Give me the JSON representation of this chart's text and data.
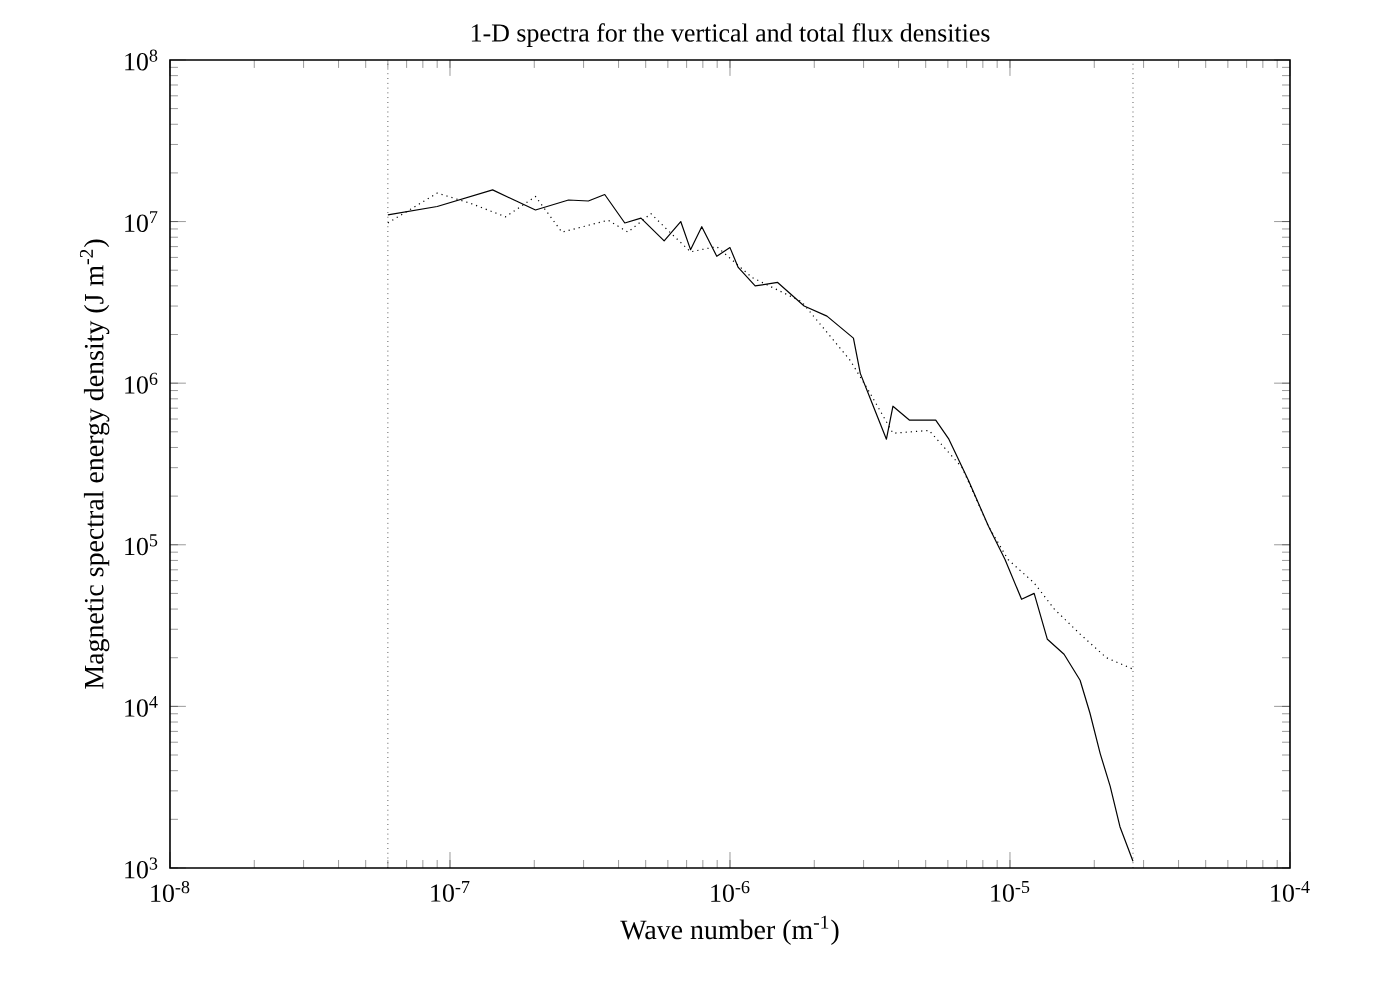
{
  "chart_data": {
    "type": "line",
    "title": "1-D spectra for the vertical and total flux densities",
    "xlabel": "Wave number (m$^{-1}$)",
    "ylabel": "Magnetic spectral energy density (J m$^{-2}$)",
    "log": "xy",
    "marker": "none",
    "xlim": [
      1e-08,
      0.0001
    ],
    "ylim": [
      1000.0,
      100000000.0
    ],
    "xticks": [
      {
        "value": 1e-08,
        "label": "10$^{-8}$"
      },
      {
        "value": 1e-07,
        "label": "10$^{-7}$"
      },
      {
        "value": 1e-06,
        "label": "10$^{-6}$"
      },
      {
        "value": 1e-05,
        "label": "10$^{-5}$"
      },
      {
        "value": 0.0001,
        "label": "10$^{-4}$"
      }
    ],
    "yticks": [
      {
        "value": 1000.0,
        "label": "10$^{3}$"
      },
      {
        "value": 10000.0,
        "label": "10$^{4}$"
      },
      {
        "value": 100000.0,
        "label": "10$^{5}$"
      },
      {
        "value": 1000000.0,
        "label": "10$^{6}$"
      },
      {
        "value": 10000000.0,
        "label": "10$^{7}$"
      },
      {
        "value": 100000000.0,
        "label": "10$^{8}$"
      }
    ],
    "ref_lines": [
      {
        "axis": "x",
        "value": 6e-08,
        "color": "#000000",
        "line_style": "dotted"
      },
      {
        "axis": "x",
        "value": 2.75e-05,
        "color": "#000000",
        "line_style": "dotted"
      }
    ],
    "series": [
      {
        "color": "#000000",
        "line_style": "solid",
        "x": [
          6e-08,
          9e-08,
          1.42e-07,
          2.02e-07,
          2.65e-07,
          3.12e-07,
          3.57e-07,
          4.21e-07,
          4.81e-07,
          5.82e-07,
          6.67e-07,
          7.23e-07,
          7.93e-07,
          8.97e-07,
          1e-06,
          1.07e-06,
          1.23e-06,
          1.48e-06,
          1.84e-06,
          2.22e-06,
          2.76e-06,
          2.92e-06,
          3.25e-06,
          3.62e-06,
          3.82e-06,
          4.38e-06,
          5.43e-06,
          6.05e-06,
          7.11e-06,
          8.38e-06,
          9.6e-06,
          1.1e-05,
          1.22e-05,
          1.36e-05,
          1.56e-05,
          1.78e-05,
          1.93e-05,
          2.1e-05,
          2.28e-05,
          2.47e-05,
          2.75e-05
        ],
        "values": [
          11000000.0,
          12400000.0,
          15700000.0,
          11800000.0,
          13600000.0,
          13400000.0,
          14700000.0,
          9800000.0,
          10500000.0,
          7600000.0,
          10000000.0,
          6700000.0,
          9300000.0,
          6100000.0,
          6900000.0,
          5200000.0,
          4000000.0,
          4200000.0,
          3000000.0,
          2600000.0,
          1900000.0,
          1150000.0,
          720000.0,
          450000.0,
          720000.0,
          590000.0,
          590000.0,
          450000.0,
          250000.0,
          130000.0,
          81000.0,
          46000.0,
          50000.0,
          26000.0,
          21000.0,
          14500.0,
          9100.0,
          5100.0,
          3200.0,
          1800.0,
          1100.0
        ]
      },
      {
        "color": "#000000",
        "line_style": "dotted",
        "x": [
          6e-08,
          9e-08,
          1.18e-07,
          1.58e-07,
          2.02e-07,
          2.51e-07,
          3.67e-07,
          4.32e-07,
          5.22e-07,
          5.97e-07,
          7.23e-07,
          8.97e-07,
          1.2e-06,
          1.8e-06,
          2.69e-06,
          3.16e-06,
          3.82e-06,
          5.14e-06,
          6.75e-06,
          8.38e-06,
          9.84e-06,
          1.22e-05,
          1.44e-05,
          1.78e-05,
          2.21e-05,
          2.75e-05
        ],
        "values": [
          9800000.0,
          15000000.0,
          13000000.0,
          10700000.0,
          14300000.0,
          8600000.0,
          10200000.0,
          8600000.0,
          11200000.0,
          8900000.0,
          6500000.0,
          7000000.0,
          4500000.0,
          3200000.0,
          1380000.0,
          870000.0,
          490000.0,
          510000.0,
          300000.0,
          130000.0,
          81000.0,
          58000.0,
          40000.0,
          28000.0,
          20000.0,
          17000.0
        ]
      }
    ]
  }
}
